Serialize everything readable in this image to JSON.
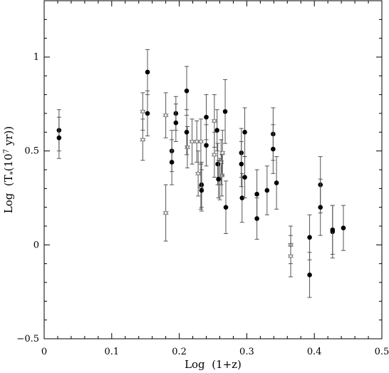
{
  "chart_data": {
    "type": "scatter",
    "xlabel": "Log  (1+z)",
    "ylabel": "Log  (T₅(10⁷ yr))",
    "ylabel_parts": {
      "pre": "Log  (T",
      "sub": "*",
      "mid": "(10",
      "sup": "7",
      "post": " yr))"
    },
    "xlim": [
      0,
      0.5
    ],
    "ylim": [
      -0.5,
      1.3
    ],
    "x_ticks": [
      0,
      0.1,
      0.2,
      0.3,
      0.4,
      0.5
    ],
    "x_tick_labels": [
      "0",
      "0.1",
      "0.2",
      "0.3",
      "0.4",
      "0.5"
    ],
    "y_ticks": [
      -0.5,
      0,
      0.5,
      1
    ],
    "y_tick_labels": [
      "−0.5",
      "0",
      "0.5",
      "1"
    ],
    "grid": false,
    "series": [
      {
        "marker": "filled-circle",
        "points": [
          {
            "x": 0.022,
            "y": 0.61,
            "err": 0.11
          },
          {
            "x": 0.022,
            "y": 0.57,
            "err": 0.11
          },
          {
            "x": 0.153,
            "y": 0.92,
            "err": 0.12
          },
          {
            "x": 0.153,
            "y": 0.7,
            "err": 0.12
          },
          {
            "x": 0.189,
            "y": 0.5,
            "err": 0.11
          },
          {
            "x": 0.189,
            "y": 0.44,
            "err": 0.12
          },
          {
            "x": 0.195,
            "y": 0.7,
            "err": 0.09
          },
          {
            "x": 0.195,
            "y": 0.65,
            "err": 0.1
          },
          {
            "x": 0.211,
            "y": 0.82,
            "err": 0.13
          },
          {
            "x": 0.211,
            "y": 0.6,
            "err": 0.12
          },
          {
            "x": 0.233,
            "y": 0.32,
            "err": 0.12
          },
          {
            "x": 0.233,
            "y": 0.29,
            "err": 0.11
          },
          {
            "x": 0.24,
            "y": 0.68,
            "err": 0.12
          },
          {
            "x": 0.24,
            "y": 0.53,
            "err": 0.11
          },
          {
            "x": 0.256,
            "y": 0.61,
            "err": 0.11
          },
          {
            "x": 0.257,
            "y": 0.43,
            "err": 0.11
          },
          {
            "x": 0.258,
            "y": 0.35,
            "err": 0.1
          },
          {
            "x": 0.268,
            "y": 0.71,
            "err": 0.17
          },
          {
            "x": 0.269,
            "y": 0.2,
            "err": 0.14
          },
          {
            "x": 0.292,
            "y": 0.49,
            "err": 0.13
          },
          {
            "x": 0.292,
            "y": 0.43,
            "err": 0.12
          },
          {
            "x": 0.293,
            "y": 0.25,
            "err": 0.13
          },
          {
            "x": 0.297,
            "y": 0.6,
            "err": 0.13
          },
          {
            "x": 0.297,
            "y": 0.36,
            "err": 0.11
          },
          {
            "x": 0.315,
            "y": 0.27,
            "err": 0.13
          },
          {
            "x": 0.315,
            "y": 0.14,
            "err": 0.11
          },
          {
            "x": 0.33,
            "y": 0.29,
            "err": 0.13
          },
          {
            "x": 0.339,
            "y": 0.59,
            "err": 0.14
          },
          {
            "x": 0.339,
            "y": 0.51,
            "err": 0.13
          },
          {
            "x": 0.344,
            "y": 0.33,
            "err": 0.14
          },
          {
            "x": 0.393,
            "y": 0.04,
            "err": 0.12
          },
          {
            "x": 0.393,
            "y": -0.16,
            "err": 0.12
          },
          {
            "x": 0.409,
            "y": 0.32,
            "err": 0.15
          },
          {
            "x": 0.409,
            "y": 0.2,
            "err": 0.15
          },
          {
            "x": 0.427,
            "y": 0.07,
            "err": 0.14
          },
          {
            "x": 0.427,
            "y": 0.08,
            "err": 0.13
          },
          {
            "x": 0.443,
            "y": 0.09,
            "err": 0.12
          }
        ]
      },
      {
        "marker": "open-star",
        "points": [
          {
            "x": 0.146,
            "y": 0.71,
            "err": 0.1
          },
          {
            "x": 0.146,
            "y": 0.56,
            "err": 0.11
          },
          {
            "x": 0.18,
            "y": 0.69,
            "err": 0.12
          },
          {
            "x": 0.18,
            "y": 0.17,
            "err": 0.15
          },
          {
            "x": 0.212,
            "y": 0.52,
            "err": 0.11
          },
          {
            "x": 0.219,
            "y": 0.55,
            "err": 0.12
          },
          {
            "x": 0.226,
            "y": 0.55,
            "err": 0.11
          },
          {
            "x": 0.228,
            "y": 0.38,
            "err": 0.12
          },
          {
            "x": 0.232,
            "y": 0.31,
            "err": 0.12
          },
          {
            "x": 0.232,
            "y": 0.55,
            "err": 0.12
          },
          {
            "x": 0.252,
            "y": 0.66,
            "err": 0.14
          },
          {
            "x": 0.252,
            "y": 0.48,
            "err": 0.12
          },
          {
            "x": 0.26,
            "y": 0.35,
            "err": 0.11
          },
          {
            "x": 0.262,
            "y": 0.44,
            "err": 0.12
          },
          {
            "x": 0.263,
            "y": 0.37,
            "err": 0.11
          },
          {
            "x": 0.264,
            "y": 0.49,
            "err": 0.12
          },
          {
            "x": 0.365,
            "y": 0.0,
            "err": 0.1
          },
          {
            "x": 0.365,
            "y": -0.06,
            "err": 0.11
          }
        ]
      }
    ]
  }
}
